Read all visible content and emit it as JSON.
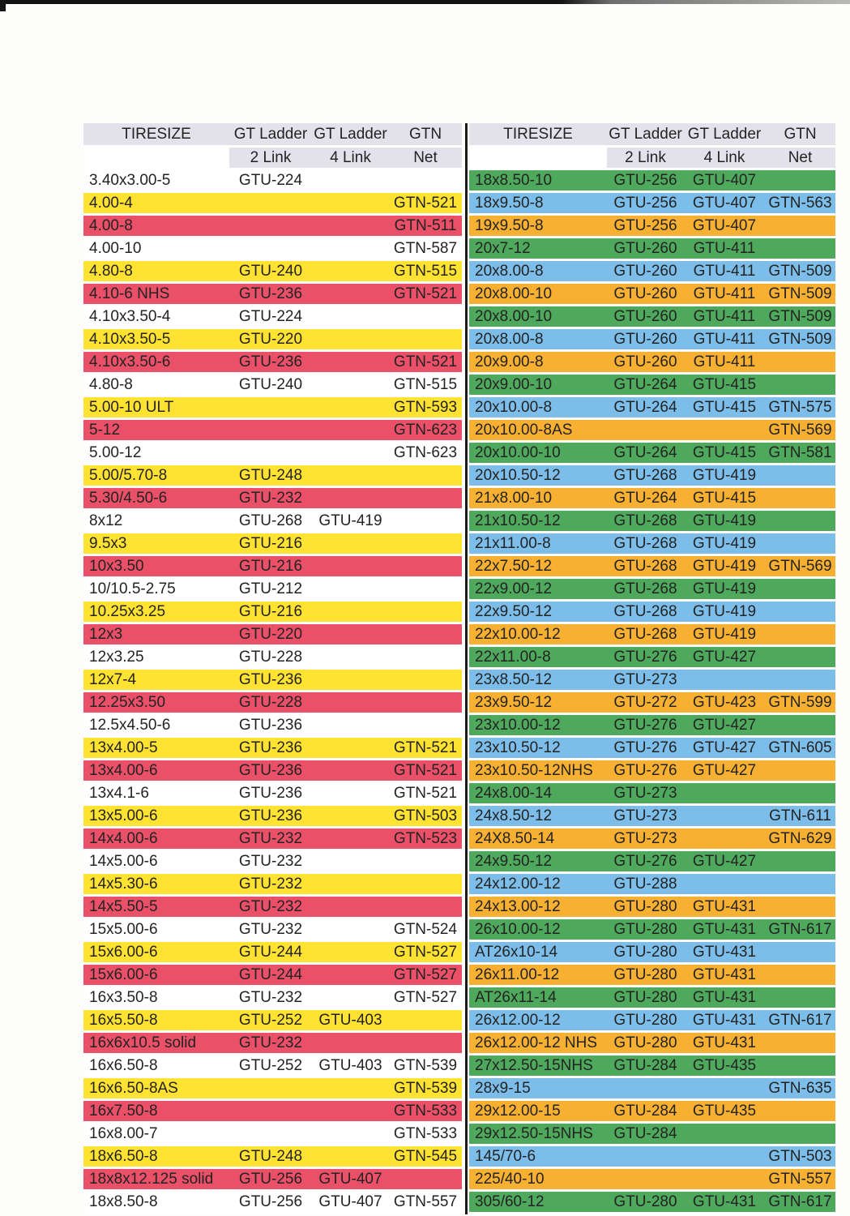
{
  "palette": {
    "w": "#ffffff",
    "y": "#ffe232",
    "r": "#ea5067",
    "g": "#4fa95c",
    "b": "#7cbee9",
    "o": "#f8b033",
    "header_gray": "#e3e2ea",
    "divider_black": "#1b1b1b",
    "text": "#232323"
  },
  "columns": {
    "tiresize": "TIRESIZE",
    "gt_ladder": "GT Ladder",
    "gtn": "GTN",
    "link2": "2 Link",
    "link4": "4 Link",
    "net": "Net"
  },
  "left_table": {
    "rows": [
      [
        "3.40x3.00-5",
        "GTU-224",
        "",
        "",
        "w"
      ],
      [
        "4.00-4",
        "",
        "",
        "GTN-521",
        "y"
      ],
      [
        "4.00-8",
        "",
        "",
        "GTN-511",
        "r"
      ],
      [
        "4.00-10",
        "",
        "",
        "GTN-587",
        "w"
      ],
      [
        "4.80-8",
        "GTU-240",
        "",
        "GTN-515",
        "y"
      ],
      [
        "4.10-6 NHS",
        "GTU-236",
        "",
        "GTN-521",
        "r"
      ],
      [
        "4.10x3.50-4",
        "GTU-224",
        "",
        "",
        "w"
      ],
      [
        "4.10x3.50-5",
        "GTU-220",
        "",
        "",
        "y"
      ],
      [
        "4.10x3.50-6",
        "GTU-236",
        "",
        "GTN-521",
        "r"
      ],
      [
        "4.80-8",
        "GTU-240",
        "",
        "GTN-515",
        "w"
      ],
      [
        "5.00-10 ULT",
        "",
        "",
        "GTN-593",
        "y"
      ],
      [
        "5-12",
        "",
        "",
        "GTN-623",
        "r"
      ],
      [
        "5.00-12",
        "",
        "",
        "GTN-623",
        "w"
      ],
      [
        "5.00/5.70-8",
        "GTU-248",
        "",
        "",
        "y"
      ],
      [
        "5.30/4.50-6",
        "GTU-232",
        "",
        "",
        "r"
      ],
      [
        "8x12",
        "GTU-268",
        "GTU-419",
        "",
        "w"
      ],
      [
        "9.5x3",
        "GTU-216",
        "",
        "",
        "y"
      ],
      [
        "10x3.50",
        "GTU-216",
        "",
        "",
        "r"
      ],
      [
        "10/10.5-2.75",
        "GTU-212",
        "",
        "",
        "w"
      ],
      [
        "10.25x3.25",
        "GTU-216",
        "",
        "",
        "y"
      ],
      [
        "12x3",
        "GTU-220",
        "",
        "",
        "r"
      ],
      [
        "12x3.25",
        "GTU-228",
        "",
        "",
        "w"
      ],
      [
        "12x7-4",
        "GTU-236",
        "",
        "",
        "y"
      ],
      [
        "12.25x3.50",
        "GTU-228",
        "",
        "",
        "r"
      ],
      [
        "12.5x4.50-6",
        "GTU-236",
        "",
        "",
        "w"
      ],
      [
        "13x4.00-5",
        "GTU-236",
        "",
        "GTN-521",
        "y"
      ],
      [
        "13x4.00-6",
        "GTU-236",
        "",
        "GTN-521",
        "r"
      ],
      [
        "13x4.1-6",
        "GTU-236",
        "",
        "GTN-521",
        "w"
      ],
      [
        "13x5.00-6",
        "GTU-236",
        "",
        "GTN-503",
        "y"
      ],
      [
        "14x4.00-6",
        "GTU-232",
        "",
        "GTN-523",
        "r"
      ],
      [
        "14x5.00-6",
        "GTU-232",
        "",
        "",
        "w"
      ],
      [
        "14x5.30-6",
        "GTU-232",
        "",
        "",
        "y"
      ],
      [
        "14x5.50-5",
        "GTU-232",
        "",
        "",
        "r"
      ],
      [
        "15x5.00-6",
        "GTU-232",
        "",
        "GTN-524",
        "w"
      ],
      [
        "15x6.00-6",
        "GTU-244",
        "",
        "GTN-527",
        "y"
      ],
      [
        "15x6.00-6",
        "GTU-244",
        "",
        "GTN-527",
        "r"
      ],
      [
        "16x3.50-8",
        "GTU-232",
        "",
        "GTN-527",
        "w"
      ],
      [
        "16x5.50-8",
        "GTU-252",
        "GTU-403",
        "",
        "y"
      ],
      [
        "16x6x10.5 solid",
        "GTU-232",
        "",
        "",
        "r"
      ],
      [
        "16x6.50-8",
        "GTU-252",
        "GTU-403",
        "GTN-539",
        "w"
      ],
      [
        "16x6.50-8AS",
        "",
        "",
        "GTN-539",
        "y"
      ],
      [
        "16x7.50-8",
        "",
        "",
        "GTN-533",
        "r"
      ],
      [
        "16x8.00-7",
        "",
        "",
        "GTN-533",
        "w"
      ],
      [
        "18x6.50-8",
        "GTU-248",
        "",
        "GTN-545",
        "y"
      ],
      [
        "18x8x12.125 solid",
        "GTU-256",
        "GTU-407",
        "",
        "r"
      ],
      [
        "18x8.50-8",
        "GTU-256",
        "GTU-407",
        "GTN-557",
        "w"
      ]
    ]
  },
  "right_table": {
    "rows": [
      [
        "18x8.50-10",
        "GTU-256",
        "GTU-407",
        "",
        "g"
      ],
      [
        "18x9.50-8",
        "GTU-256",
        "GTU-407",
        "GTN-563",
        "b"
      ],
      [
        "19x9.50-8",
        "GTU-256",
        "GTU-407",
        "",
        "o"
      ],
      [
        "20x7-12",
        "GTU-260",
        "GTU-411",
        "",
        "g"
      ],
      [
        "20x8.00-8",
        "GTU-260",
        "GTU-411",
        "GTN-509",
        "b"
      ],
      [
        "20x8.00-10",
        "GTU-260",
        "GTU-411",
        "GTN-509",
        "o"
      ],
      [
        "20x8.00-10",
        "GTU-260",
        "GTU-411",
        "GTN-509",
        "g"
      ],
      [
        "20x8.00-8",
        "GTU-260",
        "GTU-411",
        "GTN-509",
        "b"
      ],
      [
        "20x9.00-8",
        "GTU-260",
        "GTU-411",
        "",
        "o"
      ],
      [
        "20x9.00-10",
        "GTU-264",
        "GTU-415",
        "",
        "g"
      ],
      [
        "20x10.00-8",
        "GTU-264",
        "GTU-415",
        "GTN-575",
        "b"
      ],
      [
        "20x10.00-8AS",
        "",
        "",
        "GTN-569",
        "o"
      ],
      [
        "20x10.00-10",
        "GTU-264",
        "GTU-415",
        "GTN-581",
        "g"
      ],
      [
        "20x10.50-12",
        "GTU-268",
        "GTU-419",
        "",
        "b"
      ],
      [
        "21x8.00-10",
        "GTU-264",
        "GTU-415",
        "",
        "o"
      ],
      [
        "21x10.50-12",
        "GTU-268",
        "GTU-419",
        "",
        "g"
      ],
      [
        "21x11.00-8",
        "GTU-268",
        "GTU-419",
        "",
        "b"
      ],
      [
        "22x7.50-12",
        "GTU-268",
        "GTU-419",
        "GTN-569",
        "o"
      ],
      [
        "22x9.00-12",
        "GTU-268",
        "GTU-419",
        "",
        "g"
      ],
      [
        "22x9.50-12",
        "GTU-268",
        "GTU-419",
        "",
        "b"
      ],
      [
        "22x10.00-12",
        "GTU-268",
        "GTU-419",
        "",
        "o"
      ],
      [
        "22x11.00-8",
        "GTU-276",
        "GTU-427",
        "",
        "g"
      ],
      [
        "23x8.50-12",
        "GTU-273",
        "",
        "",
        "b"
      ],
      [
        "23x9.50-12",
        "GTU-272",
        "GTU-423",
        "GTN-599",
        "o"
      ],
      [
        "23x10.00-12",
        "GTU-276",
        "GTU-427",
        "",
        "g"
      ],
      [
        "23x10.50-12",
        "GTU-276",
        "GTU-427",
        "GTN-605",
        "b"
      ],
      [
        "23x10.50-12NHS",
        "GTU-276",
        "GTU-427",
        "",
        "o"
      ],
      [
        "24x8.00-14",
        "GTU-273",
        "",
        "",
        "g"
      ],
      [
        "24x8.50-12",
        "GTU-273",
        "",
        "GTN-611",
        "b"
      ],
      [
        "24X8.50-14",
        "GTU-273",
        "",
        "GTN-629",
        "o"
      ],
      [
        "24x9.50-12",
        "GTU-276",
        "GTU-427",
        "",
        "g"
      ],
      [
        "24x12.00-12",
        "GTU-288",
        "",
        "",
        "b"
      ],
      [
        "24x13.00-12",
        "GTU-280",
        "GTU-431",
        "",
        "o"
      ],
      [
        "26x10.00-12",
        "GTU-280",
        "GTU-431",
        "GTN-617",
        "g"
      ],
      [
        "AT26x10-14",
        "GTU-280",
        "GTU-431",
        "",
        "b"
      ],
      [
        "26x11.00-12",
        "GTU-280",
        "GTU-431",
        "",
        "o"
      ],
      [
        "AT26x11-14",
        "GTU-280",
        "GTU-431",
        "",
        "g"
      ],
      [
        "26x12.00-12",
        "GTU-280",
        "GTU-431",
        "GTN-617",
        "b"
      ],
      [
        "26x12.00-12 NHS",
        "GTU-280",
        "GTU-431",
        "",
        "o"
      ],
      [
        "27x12.50-15NHS",
        "GTU-284",
        "GTU-435",
        "",
        "g"
      ],
      [
        "28x9-15",
        "",
        "",
        "GTN-635",
        "b"
      ],
      [
        "29x12.00-15",
        "GTU-284",
        "GTU-435",
        "",
        "o"
      ],
      [
        "29x12.50-15NHS",
        "GTU-284",
        "",
        "",
        "g"
      ],
      [
        "145/70-6",
        "",
        "",
        "GTN-503",
        "b"
      ],
      [
        "225/40-10",
        "",
        "",
        "GTN-557",
        "o"
      ],
      [
        "305/60-12",
        "GTU-280",
        "GTU-431",
        "GTN-617",
        "g"
      ]
    ]
  }
}
